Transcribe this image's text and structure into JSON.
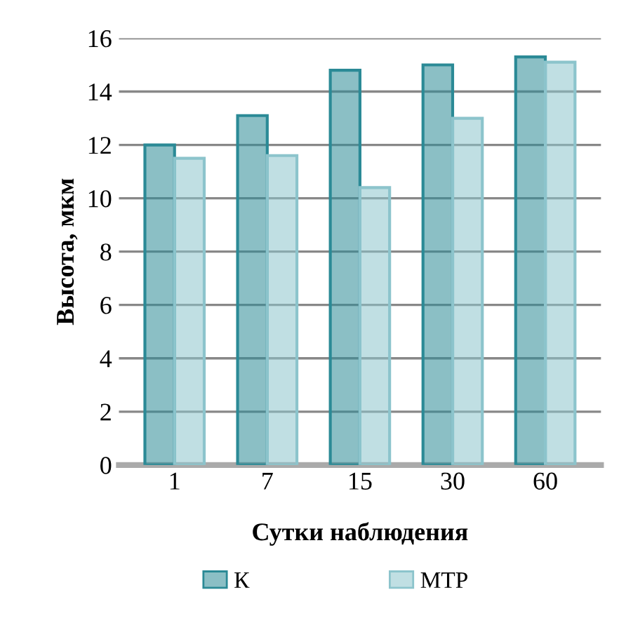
{
  "chart_data": {
    "type": "bar",
    "xlabel": "Сутки наблюдения",
    "ylabel": "Высота, мкм",
    "categories": [
      "1",
      "7",
      "15",
      "30",
      "60"
    ],
    "series": [
      {
        "name": "К",
        "color": "#2b8a96",
        "values": [
          12.0,
          13.1,
          14.8,
          15.0,
          15.3
        ]
      },
      {
        "name": "МТР",
        "color": "#8cc4cc",
        "values": [
          11.5,
          11.6,
          10.4,
          13.0,
          15.1
        ]
      }
    ],
    "ylim": [
      0,
      16
    ],
    "yticks": [
      0,
      2,
      4,
      6,
      8,
      10,
      12,
      14,
      16
    ],
    "grid": "y",
    "legend": "bottom"
  }
}
